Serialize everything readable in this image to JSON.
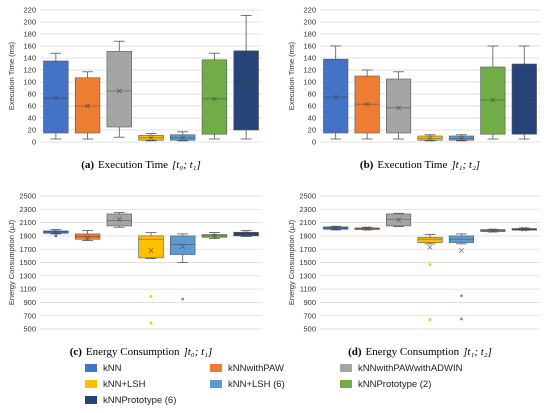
{
  "chart_data": [
    {
      "type": "box",
      "panel": "a",
      "ylabel": "Execution Time (ms)",
      "ylim": [
        0,
        220
      ],
      "ticks": [
        0,
        20,
        40,
        60,
        80,
        100,
        120,
        140,
        160,
        180,
        200,
        220
      ],
      "caption_bold": "(a)",
      "caption_text": "Execution Time",
      "caption_interval": "[t₀; t₁]",
      "grid": true,
      "boxes": [
        {
          "series": "kNN",
          "min": 5,
          "q1": 15,
          "median": 73,
          "q3": 135,
          "max": 148,
          "mean": 73,
          "outliers": []
        },
        {
          "series": "kNNwithPAW",
          "min": 5,
          "q1": 15,
          "median": 60,
          "q3": 107,
          "max": 117,
          "mean": 60,
          "outliers": []
        },
        {
          "series": "kNNwithPAWwithADWIN",
          "min": 8,
          "q1": 25,
          "median": 85,
          "q3": 151,
          "max": 168,
          "mean": 85,
          "outliers": []
        },
        {
          "series": "kNN+LSH",
          "min": 2,
          "q1": 3,
          "median": 7,
          "q3": 11,
          "max": 14,
          "mean": 7,
          "outliers": []
        },
        {
          "series": "kNN+LSH (6)",
          "min": 2,
          "q1": 3,
          "median": 7,
          "q3": 12,
          "max": 17,
          "mean": 7,
          "outliers": []
        },
        {
          "series": "kNNPrototype (2)",
          "min": 5,
          "q1": 13,
          "median": 72,
          "q3": 137,
          "max": 148,
          "mean": 72,
          "outliers": []
        },
        {
          "series": "kNNPrototype (6)",
          "min": 5,
          "q1": 20,
          "median": 103,
          "q3": 152,
          "max": 211,
          "mean": 103,
          "outliers": []
        }
      ]
    },
    {
      "type": "box",
      "panel": "b",
      "ylabel": "Execution Time (ms)",
      "ylim": [
        0,
        220
      ],
      "ticks": [
        0,
        20,
        40,
        60,
        80,
        100,
        120,
        140,
        160,
        180,
        200,
        220
      ],
      "caption_bold": "(b)",
      "caption_text": "Execution Time",
      "caption_interval": "]t₁; t₂]",
      "grid": true,
      "boxes": [
        {
          "series": "kNN",
          "min": 5,
          "q1": 15,
          "median": 75,
          "q3": 138,
          "max": 160,
          "mean": 75,
          "outliers": []
        },
        {
          "series": "kNNwithPAW",
          "min": 5,
          "q1": 15,
          "median": 63,
          "q3": 110,
          "max": 120,
          "mean": 63,
          "outliers": []
        },
        {
          "series": "kNNwithPAWwithADWIN",
          "min": 5,
          "q1": 15,
          "median": 57,
          "q3": 105,
          "max": 117,
          "mean": 57,
          "outliers": []
        },
        {
          "series": "kNN+LSH",
          "min": 2,
          "q1": 3,
          "median": 6,
          "q3": 10,
          "max": 12,
          "mean": 6,
          "outliers": []
        },
        {
          "series": "kNN+LSH (6)",
          "min": 2,
          "q1": 3,
          "median": 6,
          "q3": 10,
          "max": 12,
          "mean": 6,
          "outliers": []
        },
        {
          "series": "kNNPrototype (2)",
          "min": 5,
          "q1": 13,
          "median": 70,
          "q3": 125,
          "max": 160,
          "mean": 70,
          "outliers": []
        },
        {
          "series": "kNNPrototype (6)",
          "min": 5,
          "q1": 13,
          "median": 70,
          "q3": 130,
          "max": 160,
          "mean": 70,
          "outliers": []
        }
      ]
    },
    {
      "type": "box",
      "panel": "c",
      "ylabel": "Energy Consumption (μJ)",
      "ylim": [
        500,
        2500
      ],
      "ticks": [
        500,
        700,
        900,
        1100,
        1300,
        1500,
        1700,
        1900,
        2100,
        2300,
        2500
      ],
      "caption_bold": "(c)",
      "caption_text": "Energy Consumption",
      "caption_interval": "]t₀; t₁]",
      "grid": true,
      "boxes": [
        {
          "series": "kNN",
          "min": 1930,
          "q1": 1940,
          "median": 1960,
          "q3": 1975,
          "max": 1995,
          "mean": 1955,
          "outliers": [
            1900
          ]
        },
        {
          "series": "kNNwithPAW",
          "min": 1830,
          "q1": 1850,
          "median": 1890,
          "q3": 1930,
          "max": 1980,
          "mean": 1870,
          "outliers": []
        },
        {
          "series": "kNNwithPAWwithADWIN",
          "min": 2030,
          "q1": 2050,
          "median": 2130,
          "q3": 2230,
          "max": 2250,
          "mean": 2150,
          "outliers": []
        },
        {
          "series": "kNN+LSH",
          "min": 1560,
          "q1": 1570,
          "median": 1850,
          "q3": 1900,
          "max": 1950,
          "mean": 1680,
          "outliers": [
            990,
            590
          ]
        },
        {
          "series": "kNN+LSH (6)",
          "min": 1500,
          "q1": 1620,
          "median": 1770,
          "q3": 1900,
          "max": 1930,
          "mean": 1740,
          "outliers": [
            950
          ]
        },
        {
          "series": "kNNPrototype (2)",
          "min": 1860,
          "q1": 1880,
          "median": 1900,
          "q3": 1920,
          "max": 1950,
          "mean": 1900,
          "outliers": []
        },
        {
          "series": "kNNPrototype (6)",
          "min": 1890,
          "q1": 1900,
          "median": 1935,
          "q3": 1955,
          "max": 1980,
          "mean": 1935,
          "outliers": []
        }
      ]
    },
    {
      "type": "box",
      "panel": "d",
      "ylabel": "Energy Consumption (μJ)",
      "ylim": [
        500,
        2500
      ],
      "ticks": [
        500,
        700,
        900,
        1100,
        1300,
        1500,
        1700,
        1900,
        2100,
        2300,
        2500
      ],
      "caption_bold": "(d)",
      "caption_text": "Energy Consumption",
      "caption_interval": "]t₁; t₂]",
      "grid": true,
      "boxes": [
        {
          "series": "kNN",
          "min": 1990,
          "q1": 2000,
          "median": 2020,
          "q3": 2035,
          "max": 2045,
          "mean": 2015,
          "outliers": []
        },
        {
          "series": "kNNwithPAW",
          "min": 1990,
          "q1": 1995,
          "median": 2010,
          "q3": 2020,
          "max": 2030,
          "mean": 2010,
          "outliers": []
        },
        {
          "series": "kNNwithPAWwithADWIN",
          "min": 2040,
          "q1": 2050,
          "median": 2150,
          "q3": 2230,
          "max": 2240,
          "mean": 2140,
          "outliers": []
        },
        {
          "series": "kNN+LSH",
          "min": 1780,
          "q1": 1800,
          "median": 1850,
          "q3": 1880,
          "max": 1920,
          "mean": 1730,
          "outliers": [
            1470,
            640
          ]
        },
        {
          "series": "kNN+LSH (6)",
          "min": 1780,
          "q1": 1800,
          "median": 1850,
          "q3": 1900,
          "max": 1930,
          "mean": 1680,
          "outliers": [
            1000,
            650
          ]
        },
        {
          "series": "kNNPrototype (2)",
          "min": 1960,
          "q1": 1965,
          "median": 1980,
          "q3": 1995,
          "max": 2000,
          "mean": 1980,
          "outliers": []
        },
        {
          "series": "kNNPrototype (6)",
          "min": 1985,
          "q1": 1990,
          "median": 2000,
          "q3": 2010,
          "max": 2020,
          "mean": 2000,
          "outliers": []
        }
      ]
    }
  ],
  "legend": [
    {
      "name": "kNN",
      "color": "#4472C4"
    },
    {
      "name": "kNNwithPAW",
      "color": "#ED7D31"
    },
    {
      "name": "kNNwithPAWwithADWIN",
      "color": "#A5A5A5"
    },
    {
      "name": "kNN+LSH",
      "color": "#FFC000"
    },
    {
      "name": "kNN+LSH (6)",
      "color": "#5B9BD5"
    },
    {
      "name": "kNNPrototype (2)",
      "color": "#70AD47"
    },
    {
      "name": "kNNPrototype (6)",
      "color": "#264478"
    }
  ]
}
